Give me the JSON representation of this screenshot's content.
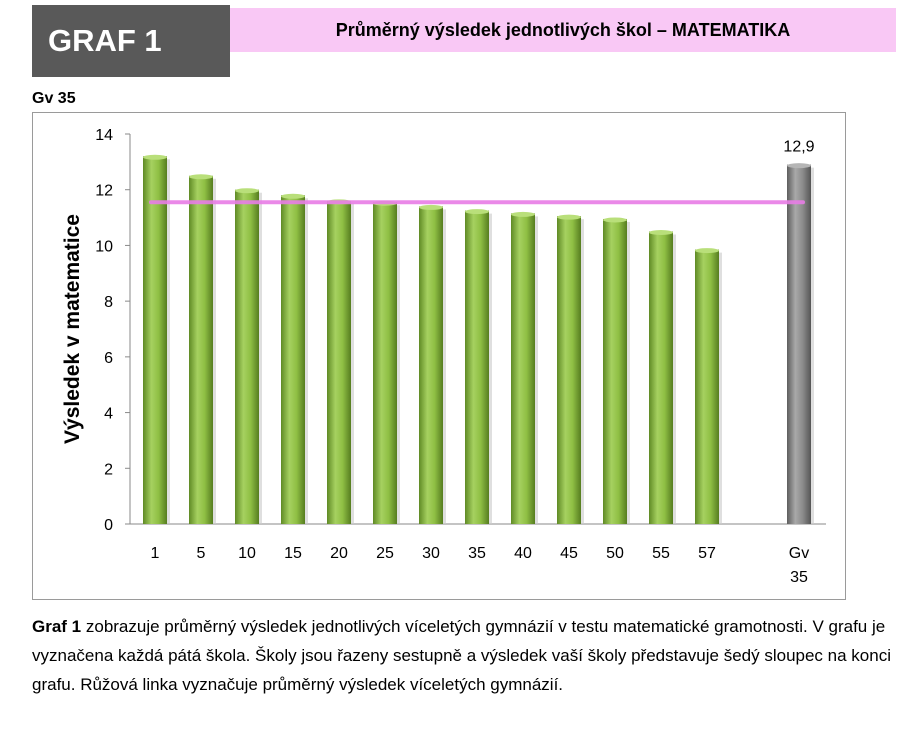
{
  "header": {
    "graf_label": "GRAF 1",
    "title": "Průměrný výsledek jednotlivých škol – MATEMATIKA"
  },
  "school_code": "Gv 35",
  "chart_data": {
    "type": "bar",
    "ylabel": "Výsledek v matematice",
    "xlabel": "",
    "ylim": [
      0,
      14
    ],
    "yticks": [
      0,
      2,
      4,
      6,
      8,
      10,
      12,
      14
    ],
    "categories": [
      "1",
      "5",
      "10",
      "15",
      "20",
      "25",
      "30",
      "35",
      "40",
      "45",
      "50",
      "55",
      "57"
    ],
    "values": [
      13.2,
      12.5,
      12.0,
      11.8,
      11.6,
      11.55,
      11.4,
      11.25,
      11.15,
      11.05,
      10.95,
      10.5,
      9.85
    ],
    "highlight": {
      "category_line1": "Gv",
      "category_line2": "35",
      "value": 12.9,
      "value_label": "12,9"
    },
    "average_line": 11.55,
    "grid": false,
    "colors": {
      "bars": "#8ab83f",
      "highlight_bar": "#8c8c8c",
      "average_line": "#e87de6"
    }
  },
  "caption": {
    "lead": "Graf 1",
    "text": " zobrazuje průměrný výsledek jednotlivých víceletých gymnázií v testu matematické gramotnosti. V grafu je vyznačena každá pátá škola. Školy jsou řazeny sestupně a výsledek vaší školy představuje šedý sloupec na konci grafu. Růžová linka vyznačuje průměrný výsledek víceletých gymnázií."
  }
}
